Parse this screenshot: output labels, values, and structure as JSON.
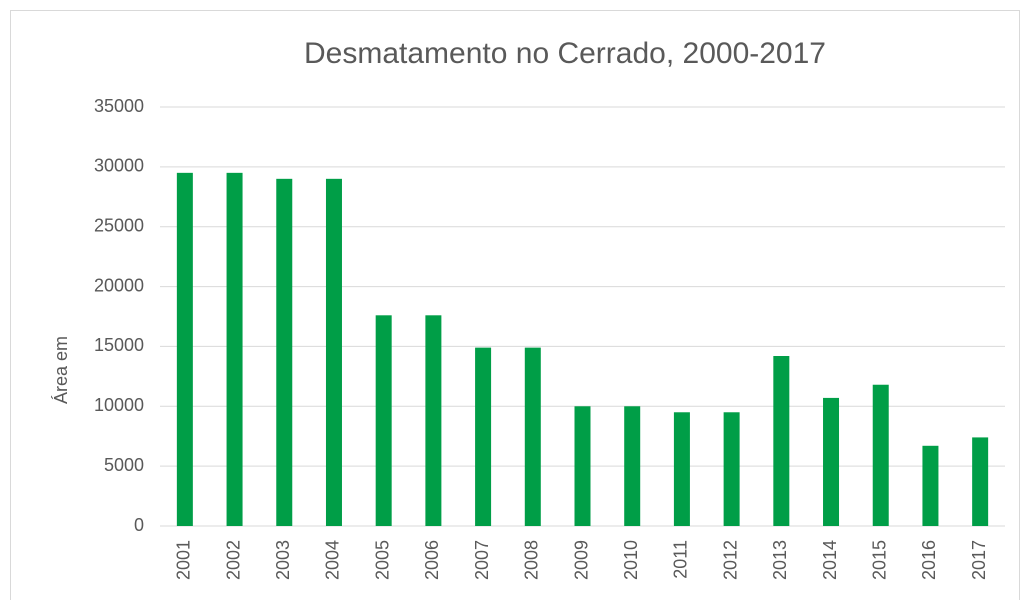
{
  "chart_data": {
    "type": "bar",
    "title": "Desmatamento no Cerrado, 2000-2017",
    "y_label": "Área em",
    "categories": [
      "2001",
      "2002",
      "2003",
      "2004",
      "2005",
      "2006",
      "2007",
      "2008",
      "2009",
      "2010",
      "2011",
      "2012",
      "2013",
      "2014",
      "2015",
      "2016",
      "2017"
    ],
    "values": [
      29500,
      29500,
      29000,
      29000,
      17600,
      17600,
      14900,
      14900,
      10000,
      10000,
      9500,
      9500,
      14200,
      10700,
      11800,
      6700,
      7400
    ],
    "color": "#009e47",
    "ylim": [
      0,
      35000
    ],
    "yticks": [
      0,
      5000,
      10000,
      15000,
      20000,
      25000,
      30000,
      35000
    ],
    "grid": true
  }
}
